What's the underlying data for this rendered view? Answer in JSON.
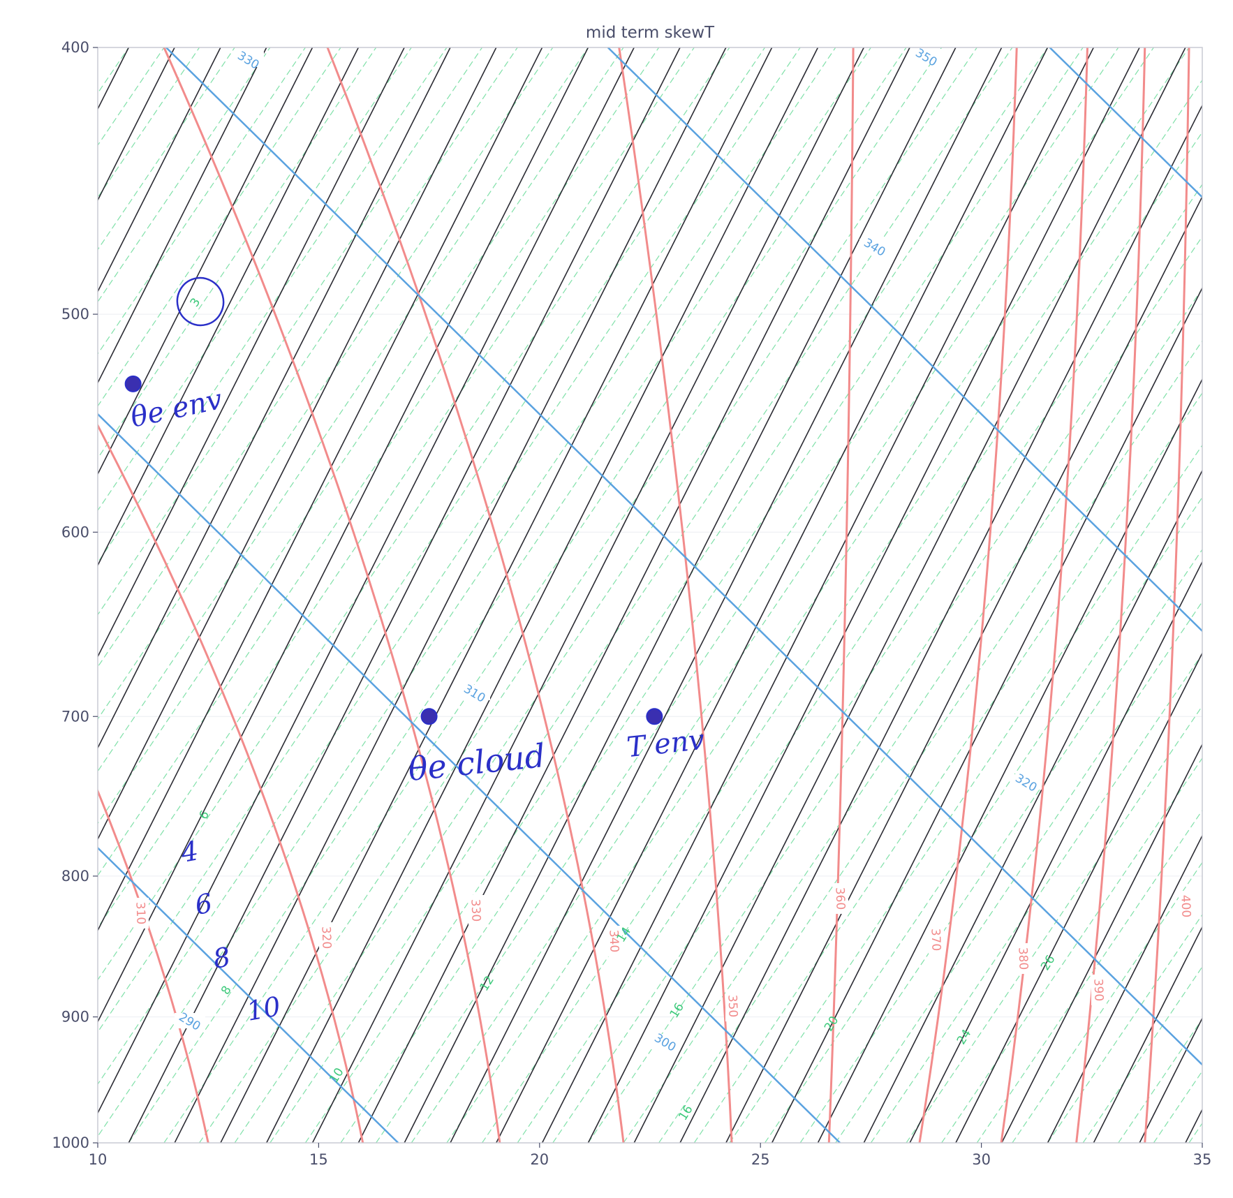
{
  "chart_data": {
    "type": "skew-t",
    "title": "mid term skewT",
    "xlabel": "",
    "ylabel": "",
    "xlim": [
      10,
      35
    ],
    "ylim": [
      1000,
      400
    ],
    "y_scale": "log",
    "grid": true,
    "x_ticks": [
      "10",
      "15",
      "20",
      "25",
      "30",
      "35"
    ],
    "y_ticks": [
      "400",
      "500",
      "600",
      "700",
      "800",
      "900",
      "1000"
    ],
    "colors": {
      "isotherm": "#2b2b33",
      "dry_adiabat": "#5aa2e0",
      "moist_adiabat": "#f28b8b",
      "mixing_ratio": "#7fe0a8",
      "mixing_ratio_label": "#3cc97a",
      "handwriting": "#2a2fc8",
      "axis_text": "#4a4e6a"
    },
    "dry_adiabats": [
      {
        "label": "290",
        "x_at_1000": 16.8
      },
      {
        "label": "300",
        "x_at_1000": 26.8
      },
      {
        "label": "310",
        "x_at_1000": 36.8
      },
      {
        "label": "320",
        "x_at_1000": 46.8
      },
      {
        "label": "330",
        "x_at_1000": 56.8
      },
      {
        "label": "340",
        "x_at_1000": 66.8
      },
      {
        "label": "350",
        "x_at_1000": 76.8
      }
    ],
    "moist_adiabats": [
      {
        "label": "310",
        "x_at_1000": 12.5,
        "x_at_400": 0.5
      },
      {
        "label": "320",
        "x_at_1000": 16.0,
        "x_at_400": 5.0
      },
      {
        "label": "330",
        "x_at_1000": 19.1,
        "x_at_400": 11.5
      },
      {
        "label": "340",
        "x_at_1000": 21.9,
        "x_at_400": 15.2
      },
      {
        "label": "350",
        "x_at_1000": 24.35,
        "x_at_400": 21.8
      },
      {
        "label": "360",
        "x_at_1000": 26.55,
        "x_at_400": 27.1
      },
      {
        "label": "370",
        "x_at_1000": 28.6,
        "x_at_400": 30.8
      },
      {
        "label": "380",
        "x_at_1000": 30.45,
        "x_at_400": 32.4
      },
      {
        "label": "390",
        "x_at_1000": 32.15,
        "x_at_400": 33.7
      },
      {
        "label": "400",
        "x_at_1000": 33.7,
        "x_at_400": 34.7
      }
    ],
    "mixing_ratio_labels": [
      {
        "text": "3",
        "x": 12.2,
        "p": 495
      },
      {
        "text": "6",
        "x": 12.4,
        "p": 760
      },
      {
        "text": "8",
        "x": 12.9,
        "p": 880
      },
      {
        "text": "10",
        "x": 15.4,
        "p": 945
      },
      {
        "text": "12",
        "x": 18.8,
        "p": 875
      },
      {
        "text": "14",
        "x": 21.9,
        "p": 840
      },
      {
        "text": "16",
        "x": 23.1,
        "p": 895
      },
      {
        "text": "16",
        "x": 23.3,
        "p": 975
      },
      {
        "text": "20",
        "x": 26.6,
        "p": 905
      },
      {
        "text": "24",
        "x": 29.6,
        "p": 915
      },
      {
        "text": "26",
        "x": 31.5,
        "p": 860
      }
    ],
    "annotations": [
      {
        "text": "θe env",
        "point": {
          "x": 10.8,
          "p": 530
        }
      },
      {
        "text": "θe cloud",
        "point": {
          "x": 17.5,
          "p": 700
        }
      },
      {
        "text": "T env",
        "point": {
          "x": 22.6,
          "p": 700
        }
      }
    ],
    "handwritten_numbers": [
      "4",
      "6",
      "8",
      "10"
    ]
  }
}
